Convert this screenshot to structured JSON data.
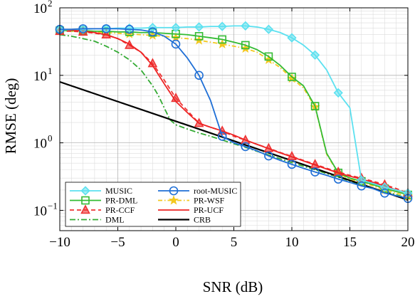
{
  "chart_data": {
    "type": "line",
    "xlabel": "SNR (dB)",
    "ylabel": "RMSE (deg)",
    "xlim": [
      -10,
      20
    ],
    "ylim": [
      0.05,
      100
    ],
    "yscale": "log",
    "grid": true,
    "legend_position": "bottom-left",
    "xticks": [
      {
        "value": -10,
        "label": "−10"
      },
      {
        "value": -5,
        "label": "−5"
      },
      {
        "value": 0,
        "label": "0"
      },
      {
        "value": 5,
        "label": "5"
      },
      {
        "value": 10,
        "label": "10"
      },
      {
        "value": 15,
        "label": "15"
      },
      {
        "value": 20,
        "label": "20"
      }
    ],
    "yticks": [
      {
        "value": 0.1,
        "base": "10",
        "exp": "−1"
      },
      {
        "value": 1,
        "base": "10",
        "exp": "0"
      },
      {
        "value": 10,
        "base": "10",
        "exp": "1"
      },
      {
        "value": 100,
        "base": "10",
        "exp": "2"
      }
    ],
    "series": [
      {
        "name": "MUSIC",
        "color": "#5ce1f0",
        "marker": "diamond",
        "dash": "",
        "x": [
          -10,
          -9,
          -8,
          -7,
          -6,
          -5,
          -4,
          -3,
          -2,
          -1,
          0,
          1,
          2,
          3,
          4,
          5,
          6,
          7,
          8,
          9,
          10,
          11,
          12,
          13,
          14,
          15,
          16,
          17,
          18,
          19,
          20
        ],
        "y": [
          47,
          48,
          48,
          49,
          49,
          50,
          50,
          50,
          51,
          51,
          51,
          52,
          52,
          53,
          53,
          54,
          54,
          52,
          48,
          43,
          36,
          28,
          20,
          12,
          5.5,
          3.3,
          0.28,
          0.25,
          0.22,
          0.2,
          0.18
        ],
        "markers_x": [
          -10,
          -8,
          -6,
          -4,
          -2,
          0,
          2,
          4,
          6,
          8,
          10,
          12,
          14,
          16,
          18,
          20
        ]
      },
      {
        "name": "root-MUSIC",
        "color": "#1f6fd6",
        "marker": "circle",
        "dash": "",
        "x": [
          -10,
          -9,
          -8,
          -7,
          -6,
          -5,
          -4,
          -3,
          -2,
          -1,
          0,
          1,
          2,
          3,
          4,
          5,
          6,
          7,
          8,
          9,
          10,
          11,
          12,
          13,
          14,
          15,
          16,
          17,
          18,
          19,
          20
        ],
        "y": [
          48,
          48,
          49,
          49,
          49,
          49,
          48,
          47,
          44,
          38,
          29,
          18,
          10,
          4.2,
          1.25,
          1.0,
          0.88,
          0.76,
          0.64,
          0.55,
          0.48,
          0.42,
          0.37,
          0.33,
          0.29,
          0.26,
          0.23,
          0.21,
          0.18,
          0.165,
          0.15
        ],
        "markers_x": [
          -10,
          -8,
          -6,
          -4,
          -2,
          0,
          2,
          4,
          6,
          8,
          10,
          12,
          14,
          16,
          18,
          20
        ]
      },
      {
        "name": "PR-DML",
        "color": "#33bb33",
        "marker": "square",
        "dash": "",
        "x": [
          -10,
          -9,
          -8,
          -7,
          -6,
          -5,
          -4,
          -3,
          -2,
          -1,
          0,
          1,
          2,
          3,
          4,
          5,
          6,
          7,
          8,
          9,
          10,
          11,
          12,
          13,
          14,
          15,
          16,
          17,
          18,
          19,
          20
        ],
        "y": [
          46,
          46,
          46,
          45,
          45,
          44,
          44,
          43,
          43,
          42,
          41,
          40,
          38,
          36,
          34,
          31,
          28,
          24,
          19,
          14,
          9.5,
          7.0,
          3.5,
          0.7,
          0.36,
          0.3,
          0.27,
          0.24,
          0.21,
          0.19,
          0.17
        ],
        "markers_x": [
          -10,
          -8,
          -6,
          -4,
          -2,
          0,
          2,
          4,
          6,
          8,
          10,
          12,
          14,
          16,
          18,
          20
        ]
      },
      {
        "name": "PR-WSF",
        "color": "#f3c81f",
        "marker": "star",
        "dash": "6,3,1.5,3",
        "x": [
          -10,
          -9,
          -8,
          -7,
          -6,
          -5,
          -4,
          -3,
          -2,
          -1,
          0,
          1,
          2,
          3,
          4,
          5,
          6,
          7,
          8,
          9,
          10,
          11,
          12,
          13,
          14,
          15,
          16,
          17,
          18,
          19,
          20
        ],
        "y": [
          46,
          45,
          45,
          44,
          43,
          42,
          41,
          40,
          39,
          38,
          36,
          35,
          33,
          31,
          29,
          27,
          25,
          22,
          17,
          13,
          9.0,
          6.5,
          3.4,
          0.68,
          0.35,
          0.29,
          0.26,
          0.23,
          0.2,
          0.18,
          0.16
        ],
        "markers_x": [
          -10,
          -8,
          -6,
          -4,
          -2,
          0,
          2,
          4,
          6,
          8,
          10,
          12,
          14,
          16,
          18,
          20
        ]
      },
      {
        "name": "PR-CCF",
        "color": "#ee3333",
        "marker": "triangle",
        "dash": "6,4",
        "x": [
          -10,
          -9,
          -8,
          -7,
          -6,
          -5,
          -4,
          -3,
          -2,
          -1,
          0,
          1,
          2,
          3,
          4,
          5,
          6,
          7,
          8,
          9,
          10,
          11,
          12,
          13,
          14,
          15,
          16,
          17,
          18,
          19,
          20
        ],
        "y": [
          45,
          45,
          44,
          42,
          40,
          35,
          28,
          22,
          15,
          8.5,
          4.6,
          3.0,
          1.95,
          1.7,
          1.5,
          1.25,
          1.1,
          0.95,
          0.83,
          0.72,
          0.63,
          0.55,
          0.48,
          0.42,
          0.37,
          0.33,
          0.3,
          0.27,
          0.24,
          0.21,
          0.18
        ],
        "markers_x": [
          -10,
          -8,
          -6,
          -4,
          -2,
          0,
          2,
          4,
          6,
          8,
          10,
          12,
          14,
          16,
          18,
          20
        ]
      },
      {
        "name": "PR-UCF",
        "color": "#ee2222",
        "marker": "none",
        "dash": "",
        "x": [
          -10,
          -9,
          -8,
          -7,
          -6,
          -5,
          -4,
          -3,
          -2,
          -1,
          0,
          1,
          2,
          3,
          4,
          5,
          6,
          7,
          8,
          9,
          10,
          11,
          12,
          13,
          14,
          15,
          16,
          17,
          18,
          19,
          20
        ],
        "y": [
          48,
          47,
          45,
          43,
          40,
          35,
          29,
          22,
          14,
          7.5,
          4.1,
          2.8,
          1.95,
          1.7,
          1.5,
          1.3,
          1.1,
          0.95,
          0.82,
          0.71,
          0.62,
          0.54,
          0.47,
          0.41,
          0.36,
          0.32,
          0.29,
          0.26,
          0.23,
          0.2,
          0.18
        ],
        "markers_x": []
      },
      {
        "name": "DML",
        "color": "#33aa33",
        "marker": "none",
        "dash": "8,3,2,3",
        "x": [
          -10,
          -9,
          -8,
          -7,
          -6,
          -5,
          -4,
          -3,
          -2,
          -1.5,
          -1,
          -0.5,
          0,
          1,
          2,
          3,
          4,
          5,
          6,
          7,
          8,
          9,
          10,
          11,
          12,
          13,
          14,
          15,
          16,
          17,
          18,
          19,
          20
        ],
        "y": [
          40,
          38,
          35,
          32,
          27,
          22,
          17,
          12,
          7.0,
          5.0,
          3.3,
          2.2,
          1.85,
          1.6,
          1.4,
          1.25,
          1.1,
          0.97,
          0.86,
          0.75,
          0.66,
          0.58,
          0.51,
          0.45,
          0.4,
          0.35,
          0.31,
          0.27,
          0.24,
          0.21,
          0.19,
          0.17,
          0.15
        ],
        "markers_x": []
      },
      {
        "name": "CRB",
        "color": "#000000",
        "marker": "none",
        "dash": "",
        "x": [
          -10,
          20
        ],
        "y": [
          8.0,
          0.142
        ],
        "markers_x": []
      }
    ],
    "legend_order": [
      "MUSIC",
      "root-MUSIC",
      "PR-DML",
      "PR-WSF",
      "PR-CCF",
      "PR-UCF",
      "DML",
      "CRB"
    ]
  }
}
